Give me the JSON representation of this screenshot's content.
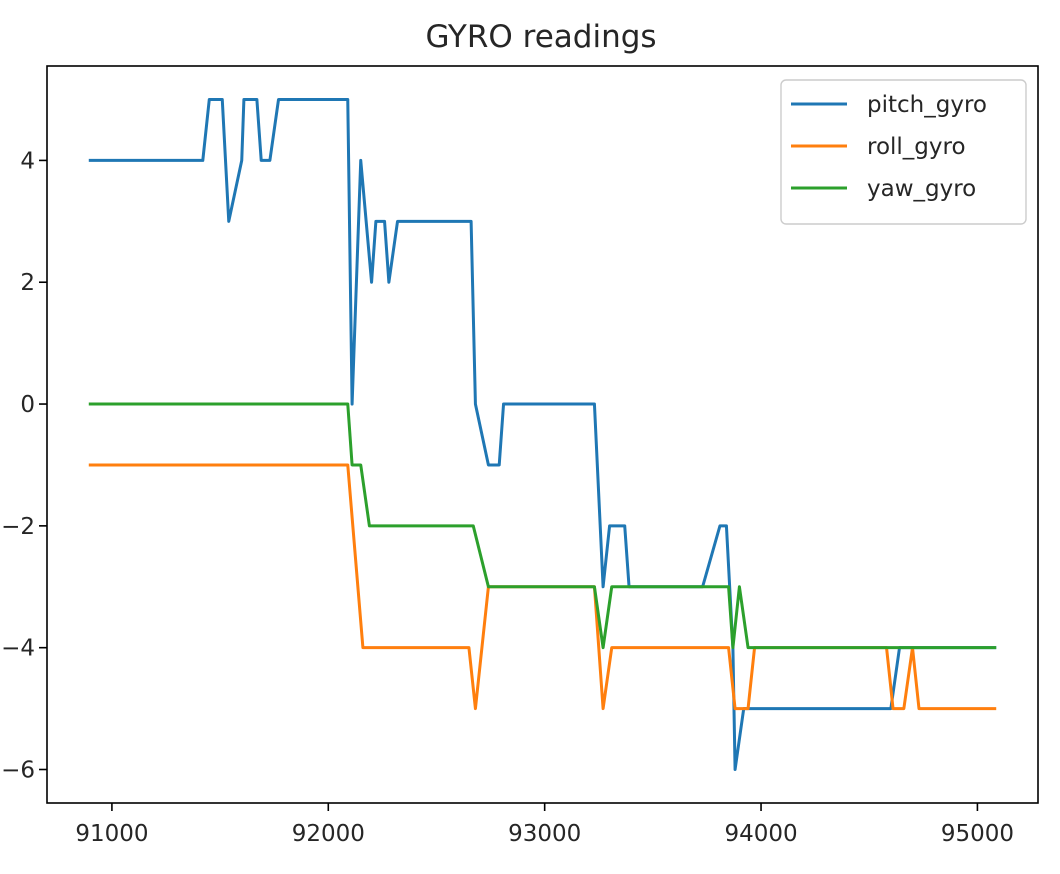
{
  "chart_data": {
    "type": "line",
    "title": "GYRO readings",
    "xlabel": "",
    "ylabel": "",
    "xlim": [
      90700,
      95280
    ],
    "ylim": [
      -6.55,
      5.55
    ],
    "x_ticks": [
      91000,
      92000,
      93000,
      94000,
      95000
    ],
    "y_ticks": [
      -6,
      -4,
      -2,
      0,
      2,
      4
    ],
    "grid": false,
    "legend": "upper right",
    "series": [
      {
        "name": "pitch_gyro",
        "color": "#1f77b4",
        "points": [
          [
            90900,
            4
          ],
          [
            91420,
            4
          ],
          [
            91450,
            5
          ],
          [
            91510,
            5
          ],
          [
            91540,
            3
          ],
          [
            91600,
            4
          ],
          [
            91610,
            5
          ],
          [
            91670,
            5
          ],
          [
            91690,
            4
          ],
          [
            91730,
            4
          ],
          [
            91770,
            5
          ],
          [
            91790,
            5
          ],
          [
            92090,
            5
          ],
          [
            92110,
            0
          ],
          [
            92150,
            4
          ],
          [
            92200,
            2
          ],
          [
            92220,
            3
          ],
          [
            92260,
            3
          ],
          [
            92280,
            2
          ],
          [
            92320,
            3
          ],
          [
            92660,
            3
          ],
          [
            92680,
            0
          ],
          [
            92740,
            -1
          ],
          [
            92790,
            -1
          ],
          [
            92810,
            0
          ],
          [
            93230,
            0
          ],
          [
            93270,
            -3
          ],
          [
            93300,
            -2
          ],
          [
            93370,
            -2
          ],
          [
            93390,
            -3
          ],
          [
            93730,
            -3
          ],
          [
            93810,
            -2
          ],
          [
            93840,
            -2
          ],
          [
            93870,
            -4
          ],
          [
            93880,
            -6
          ],
          [
            93920,
            -5
          ],
          [
            94600,
            -5
          ],
          [
            94640,
            -4
          ],
          [
            95080,
            -4
          ]
        ]
      },
      {
        "name": "roll_gyro",
        "color": "#ff7f0e",
        "points": [
          [
            90900,
            -1
          ],
          [
            92090,
            -1
          ],
          [
            92160,
            -4
          ],
          [
            92650,
            -4
          ],
          [
            92680,
            -5
          ],
          [
            92740,
            -3
          ],
          [
            93230,
            -3
          ],
          [
            93270,
            -5
          ],
          [
            93310,
            -4
          ],
          [
            93850,
            -4
          ],
          [
            93880,
            -5
          ],
          [
            93940,
            -5
          ],
          [
            93970,
            -4
          ],
          [
            94580,
            -4
          ],
          [
            94610,
            -5
          ],
          [
            94660,
            -5
          ],
          [
            94700,
            -4
          ],
          [
            94730,
            -5
          ],
          [
            95080,
            -5
          ]
        ]
      },
      {
        "name": "yaw_gyro",
        "color": "#2ca02c",
        "points": [
          [
            90900,
            0
          ],
          [
            92090,
            0
          ],
          [
            92110,
            -1
          ],
          [
            92150,
            -1
          ],
          [
            92190,
            -2
          ],
          [
            92670,
            -2
          ],
          [
            92740,
            -3
          ],
          [
            93230,
            -3
          ],
          [
            93270,
            -4
          ],
          [
            93310,
            -3
          ],
          [
            93850,
            -3
          ],
          [
            93870,
            -4
          ],
          [
            93900,
            -3
          ],
          [
            93940,
            -4
          ],
          [
            95080,
            -4
          ]
        ]
      }
    ]
  }
}
